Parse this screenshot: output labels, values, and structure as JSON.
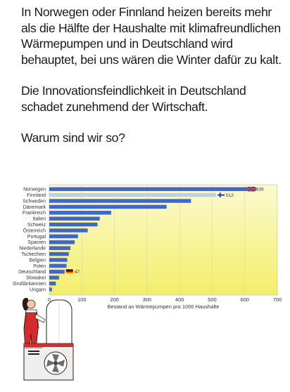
{
  "post": {
    "paragraph_1": "In Norwegen oder Finnland heizen bereits mehr als die Hälfte der Haushalte mit klimafreundlichen Wärmepumpen und in Deutschland wird behauptet, bei uns wären die Winter dafür zu kalt.",
    "paragraph_2": "Die Innovationsfeindlichkeit in Deutschland schadet zunehmend der Wirtschaft.",
    "paragraph_3": "Warum sind wir so?"
  },
  "chart_data": {
    "type": "bar",
    "orientation": "horizontal",
    "categories": [
      "Norwegen",
      "Finnland",
      "Schweden",
      "Dänemark",
      "Frankreich",
      "Italien",
      "Schweiz",
      "Österreich",
      "Portugal",
      "Spanien",
      "Niederlande",
      "Tschechien",
      "Belgien",
      "Polen",
      "Deutschland",
      "Slowakei",
      "Großbritannien",
      "Ungarn"
    ],
    "values": [
      635,
      512,
      435,
      360,
      190,
      155,
      148,
      118,
      88,
      78,
      65,
      60,
      55,
      53,
      47,
      30,
      20,
      8
    ],
    "value_labels": {
      "Norwegen": "635",
      "Finnland": "512",
      "Deutschland": "47"
    },
    "flags": {
      "Norwegen": "norway",
      "Finnland": "finland",
      "Deutschland": "germany"
    },
    "xlabel": "Bestand an Wärmepumpen pro 1000 Haushalte",
    "xlim": [
      0,
      700
    ],
    "xticks": [
      0,
      100,
      200,
      300,
      400,
      500,
      600,
      700
    ],
    "colors": {
      "bar": "#3f66c8",
      "highlight_bar": "#bcd0ee",
      "bg_top": "#fbfad0",
      "bg_bottom": "#f4ee6a"
    }
  }
}
